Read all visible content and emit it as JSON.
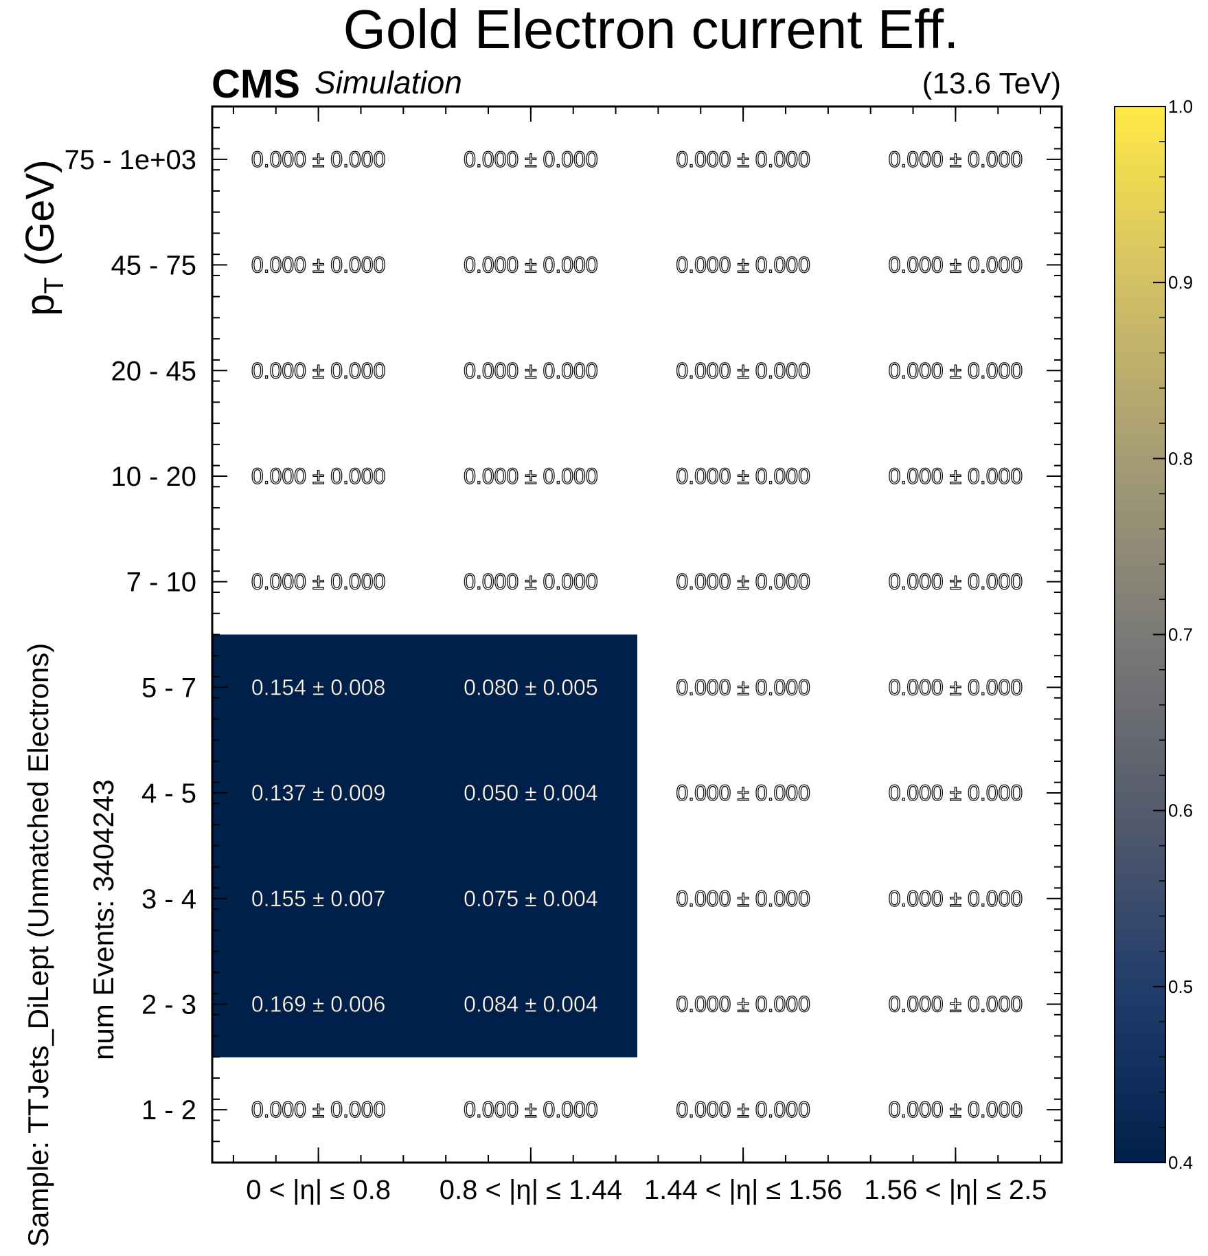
{
  "chart_data": {
    "type": "heatmap",
    "title": "Gold Electron current Eff.",
    "experiment": "CMS",
    "experiment_tag": "Simulation",
    "energy_label": "(13.6 TeV)",
    "ylabel": "p_T (GeV)",
    "ylabel_main": "p",
    "ylabel_sub": "T",
    "ylabel_unit": " (GeV)",
    "side_label_1": "Sample: TTJets_DiLept (Unmatched Electrons)",
    "side_label_2": "num Events: 3404243",
    "x_categories": [
      "0  < |η| ≤  0.8",
      "0.8  < |η| ≤  1.44",
      "1.44  < |η| ≤  1.56",
      "1.56  < |η| ≤  2.5"
    ],
    "y_categories": [
      "1 - 2",
      "2 - 3",
      "3 - 4",
      "4 - 5",
      "5 - 7",
      "7 - 10",
      "10 - 20",
      "20 - 45",
      "45 - 75",
      "75 - 1e+03"
    ],
    "values": [
      [
        0.0,
        0.0,
        0.0,
        0.0
      ],
      [
        0.169,
        0.084,
        0.0,
        0.0
      ],
      [
        0.155,
        0.075,
        0.0,
        0.0
      ],
      [
        0.137,
        0.05,
        0.0,
        0.0
      ],
      [
        0.154,
        0.08,
        0.0,
        0.0
      ],
      [
        0.0,
        0.0,
        0.0,
        0.0
      ],
      [
        0.0,
        0.0,
        0.0,
        0.0
      ],
      [
        0.0,
        0.0,
        0.0,
        0.0
      ],
      [
        0.0,
        0.0,
        0.0,
        0.0
      ],
      [
        0.0,
        0.0,
        0.0,
        0.0
      ]
    ],
    "errors": [
      [
        0.0,
        0.0,
        0.0,
        0.0
      ],
      [
        0.006,
        0.004,
        0.0,
        0.0
      ],
      [
        0.007,
        0.004,
        0.0,
        0.0
      ],
      [
        0.009,
        0.004,
        0.0,
        0.0
      ],
      [
        0.008,
        0.005,
        0.0,
        0.0
      ],
      [
        0.0,
        0.0,
        0.0,
        0.0
      ],
      [
        0.0,
        0.0,
        0.0,
        0.0
      ],
      [
        0.0,
        0.0,
        0.0,
        0.0
      ],
      [
        0.0,
        0.0,
        0.0,
        0.0
      ],
      [
        0.0,
        0.0,
        0.0,
        0.0
      ]
    ],
    "zlim": [
      0.4,
      1.0
    ],
    "colorbar_ticks": [
      "0.4",
      "0.5",
      "0.6",
      "0.7",
      "0.8",
      "0.9",
      "1.0"
    ],
    "colormap": "cividis",
    "colormap_stops": [
      "#00204c",
      "#213d6b",
      "#555b6c",
      "#7b7a77",
      "#a59c74",
      "#d3c065",
      "#ffe945"
    ],
    "underflow_behavior": "values below zmin drawn in lowest color; zero bins left blank"
  }
}
